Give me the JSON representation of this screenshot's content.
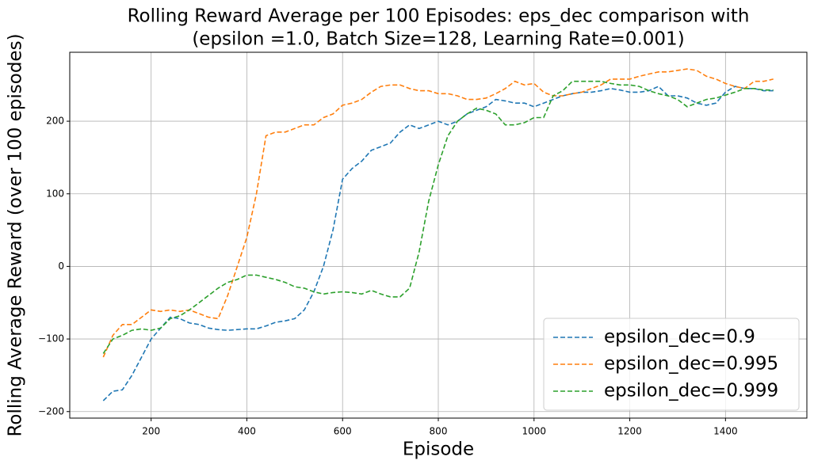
{
  "chart_data": {
    "type": "line",
    "title": [
      "Rolling Reward Average per 100 Episodes: eps_dec comparison with",
      "(epsilon =1.0, Batch Size=128, Learning Rate=0.001)"
    ],
    "x_label": "Episode",
    "y_label": "Rolling Average Reward (over 100 episodes)",
    "x": [
      100,
      120,
      140,
      160,
      180,
      200,
      220,
      240,
      260,
      280,
      300,
      320,
      340,
      360,
      380,
      400,
      420,
      440,
      460,
      480,
      500,
      520,
      540,
      560,
      580,
      600,
      620,
      640,
      660,
      680,
      700,
      720,
      740,
      760,
      780,
      800,
      820,
      840,
      860,
      880,
      900,
      920,
      940,
      960,
      980,
      1000,
      1020,
      1040,
      1060,
      1080,
      1100,
      1120,
      1140,
      1160,
      1180,
      1200,
      1220,
      1240,
      1260,
      1280,
      1300,
      1320,
      1340,
      1360,
      1380,
      1400,
      1420,
      1440,
      1460,
      1480,
      1500
    ],
    "series": [
      {
        "name": "epsilon_dec=0.9",
        "color": "#1f77b4",
        "values": [
          -185,
          -172,
          -170,
          -150,
          -125,
          -100,
          -85,
          -70,
          -72,
          -78,
          -80,
          -85,
          -87,
          -88,
          -87,
          -86,
          -86,
          -82,
          -77,
          -75,
          -72,
          -60,
          -35,
          0,
          50,
          120,
          135,
          145,
          160,
          165,
          170,
          185,
          195,
          190,
          195,
          200,
          195,
          200,
          210,
          215,
          220,
          230,
          228,
          225,
          225,
          220,
          225,
          230,
          235,
          238,
          240,
          240,
          242,
          245,
          243,
          240,
          240,
          242,
          248,
          235,
          235,
          232,
          225,
          222,
          225,
          240,
          248,
          245,
          245,
          242,
          242
        ]
      },
      {
        "name": "epsilon_dec=0.995",
        "color": "#ff7f0e",
        "values": [
          -125,
          -95,
          -80,
          -80,
          -70,
          -60,
          -62,
          -60,
          -62,
          -60,
          -65,
          -70,
          -72,
          -40,
          0,
          40,
          100,
          180,
          185,
          185,
          190,
          195,
          195,
          205,
          210,
          222,
          225,
          230,
          240,
          248,
          250,
          250,
          245,
          242,
          242,
          238,
          238,
          235,
          230,
          230,
          232,
          238,
          245,
          255,
          250,
          252,
          240,
          235,
          235,
          238,
          240,
          245,
          250,
          258,
          258,
          258,
          262,
          265,
          268,
          268,
          270,
          272,
          270,
          262,
          258,
          252,
          248,
          245,
          255,
          255,
          258
        ]
      },
      {
        "name": "epsilon_dec=0.999",
        "color": "#2ca02c",
        "values": [
          -120,
          -100,
          -95,
          -88,
          -86,
          -88,
          -85,
          -72,
          -68,
          -60,
          -50,
          -40,
          -30,
          -22,
          -18,
          -12,
          -12,
          -15,
          -18,
          -22,
          -28,
          -30,
          -35,
          -38,
          -36,
          -35,
          -36,
          -38,
          -33,
          -38,
          -42,
          -42,
          -30,
          20,
          90,
          140,
          180,
          200,
          210,
          218,
          215,
          210,
          195,
          195,
          198,
          205,
          205,
          235,
          242,
          255,
          255,
          255,
          255,
          252,
          250,
          250,
          248,
          242,
          238,
          235,
          230,
          220,
          225,
          230,
          232,
          236,
          240,
          245,
          245,
          243,
          243
        ]
      }
    ],
    "xlim": [
      30,
      1570
    ],
    "ylim": [
      -209,
      295
    ],
    "xticks": [
      200,
      400,
      600,
      800,
      1000,
      1200,
      1400
    ],
    "yticks": [
      {
        "value": -200,
        "label": "−200"
      },
      {
        "value": -100,
        "label": "−100"
      },
      0,
      100,
      200
    ],
    "grid": true,
    "line_style": "dashed",
    "legend": "lower right"
  }
}
